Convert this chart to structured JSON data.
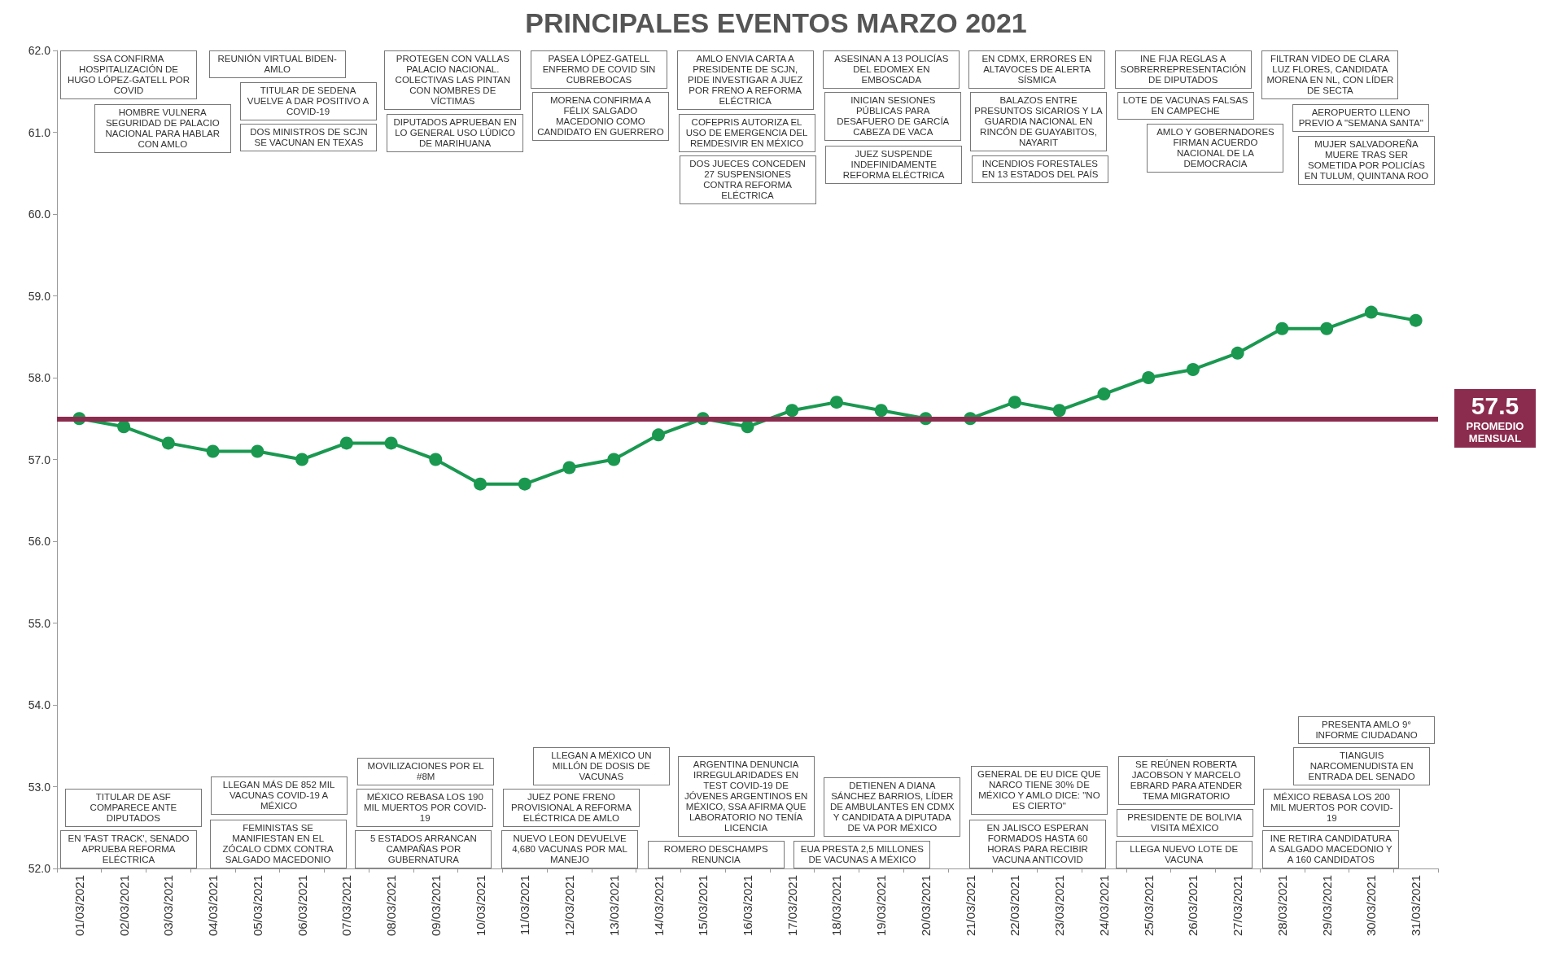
{
  "chart_data": {
    "type": "line",
    "title": "PRINCIPALES EVENTOS MARZO 2021",
    "categories": [
      "01/03/2021",
      "02/03/2021",
      "03/03/2021",
      "04/03/2021",
      "05/03/2021",
      "06/03/2021",
      "07/03/2021",
      "08/03/2021",
      "09/03/2021",
      "10/03/2021",
      "11/03/2021",
      "12/03/2021",
      "13/03/2021",
      "14/03/2021",
      "15/03/2021",
      "16/03/2021",
      "17/03/2021",
      "18/03/2021",
      "19/03/2021",
      "20/03/2021",
      "21/03/2021",
      "22/03/2021",
      "23/03/2021",
      "24/03/2021",
      "25/03/2021",
      "26/03/2021",
      "27/03/2021",
      "28/03/2021",
      "29/03/2021",
      "30/03/2021",
      "31/03/2021"
    ],
    "series": [
      {
        "color": "#1a9850",
        "values": [
          57.5,
          57.4,
          57.2,
          57.1,
          57.1,
          57.0,
          57.2,
          57.2,
          57.0,
          56.7,
          56.7,
          56.9,
          57.0,
          57.3,
          57.5,
          57.4,
          57.6,
          57.7,
          57.6,
          57.5,
          57.5,
          57.7,
          57.6,
          57.8,
          58.0,
          58.1,
          58.3,
          58.6,
          58.6,
          58.8,
          58.7
        ]
      }
    ],
    "ylim": [
      52,
      62
    ],
    "yticks": [
      {
        "value": 52,
        "label": "52.0"
      },
      {
        "value": 53,
        "label": "53.0"
      },
      {
        "value": 54,
        "label": "54.0"
      },
      {
        "value": 55,
        "label": "55.0"
      },
      {
        "value": 56,
        "label": "56.0"
      },
      {
        "value": 57,
        "label": "57.0"
      },
      {
        "value": 58,
        "label": "58.0"
      },
      {
        "value": 59,
        "label": "59.0"
      },
      {
        "value": 60,
        "label": "60.0"
      },
      {
        "value": 61,
        "label": "61.0"
      },
      {
        "value": 62,
        "label": "62.0"
      }
    ],
    "grid": false,
    "marker": "circle",
    "line_style": "solid",
    "ref_lines": [
      {
        "axis": "y",
        "value": 57.5,
        "label": "57.5 PROMEDIO MENSUAL",
        "color": "#8b2c4e"
      }
    ],
    "annotations": [
      "SSA CONFIRMA HOSPITALIZACIÓN DE HUGO LÓPEZ-GATELL POR COVID",
      "EN 'FAST TRACK', SENADO APRUEBA REFORMA ELÉCTRICA",
      "TITULAR DE ASF COMPARECE ANTE DIPUTADOS",
      "HOMBRE VULNERA SEGURIDAD DE PALACIO NACIONAL PARA HABLAR CON AMLO",
      "REUNIÓN VIRTUAL BIDEN-AMLO",
      "FEMINISTAS SE MANIFIESTAN EN EL ZÓCALO CDMX CONTRA SALGADO MACEDONIO",
      "LLEGAN MÁS DE 852 MIL VACUNAS COVID-19 A MÉXICO",
      "TITULAR DE SEDENA VUELVE A DAR POSITIVO A COVID-19",
      "DOS MINISTROS DE SCJN SE VACUNAN EN TEXAS",
      "5 ESTADOS ARRANCAN CAMPAÑAS POR GUBERNATURA",
      "PROTEGEN CON VALLAS PALACIO NACIONAL. COLECTIVAS LAS PINTAN CON NOMBRES DE VÍCTIMAS",
      "MÉXICO REBASA LOS 190 MIL MUERTOS POR COVID-19",
      "MOVILIZACIONES POR EL #8M",
      "DIPUTADOS APRUEBAN EN LO GENERAL USO LÚDICO DE MARIHUANA",
      "NUEVO LEON DEVUELVE 4,680 VACUNAS POR MAL MANEJO",
      "PASEA LÓPEZ-GATELL ENFERMO DE COVID SIN CUBREBOCAS",
      "JUEZ PONE FRENO PROVISIONAL A REFORMA ELÉCTRICA DE AMLO",
      "MORENA CONFIRMA A FÉLIX SALGADO MACEDONIO COMO CANDIDATO EN GUERRERO",
      "LLEGAN A MÉXICO UN MILLÓN DE DOSIS DE VACUNAS",
      "ROMERO DESCHAMPS RENUNCIA",
      "AMLO ENVIA CARTA A PRESIDENTE DE SCJN, PIDE INVESTIGAR A JUEZ POR FRENO A REFORMA ELÉCTRICA",
      "ARGENTINA DENUNCIA IRREGULARIDADES EN TEST COVID-19 DE JÓVENES ARGENTINOS EN MÉXICO, SSA AFIRMA QUE LABORATORIO NO TENÍA LICENCIA",
      "COFEPRIS AUTORIZA EL USO DE EMERGENCIA DEL REMDESIVIR EN MÉXICO",
      "DOS JUECES CONCEDEN 27 SUSPENSIONES CONTRA REFORMA ELÉCTRICA",
      "EUA PRESTA 2,5 MILLONES DE VACUNAS A MÉXICO",
      "ASESINAN A 13 POLICÍAS DEL EDOMEX EN EMBOSCADA",
      "DETIENEN A DIANA SÁNCHEZ BARRIOS, LÍDER DE AMBULANTES EN CDMX Y CANDIDATA A DIPUTADA DE VA POR MÉXICO",
      "INICIAN SESIONES PÚBLICAS PARA DESAFUERO DE GARCÍA CABEZA DE VACA",
      "JUEZ SUSPENDE INDEFINIDAMENTE REFORMA ELÉCTRICA",
      "EN CDMX, ERRORES EN ALTAVOCES DE ALERTA SÍSMICA",
      "EN JALISCO ESPERAN FORMADOS HASTA 60 HORAS PARA RECIBIR VACUNA ANTICOVID",
      "BALAZOS ENTRE PRESUNTOS SICARIOS Y LA GUARDIA NACIONAL EN RINCÓN DE GUAYABITOS, NAYARIT",
      "GENERAL DE EU DICE QUE NARCO TIENE 30% DE MÉXICO Y AMLO DICE: \"NO ES CIERTO\"",
      "INCENDIOS FORESTALES EN 13 ESTADOS DEL PAÍS",
      "INE FIJA REGLAS A SOBRERREPRESENTACIÓN DE DIPUTADOS",
      "LLEGA NUEVO LOTE DE VACUNA",
      "PRESIDENTE DE BOLIVIA VISITA MÉXICO",
      "LOTE DE VACUNAS FALSAS EN CAMPECHE",
      "SE REÚNEN ROBERTA JACOBSON Y MARCELO EBRARD PARA ATENDER TEMA MIGRATORIO",
      "AMLO Y GOBERNADORES FIRMAN ACUERDO NACIONAL DE LA DEMOCRACIA",
      "FILTRAN VIDEO DE CLARA LUZ FLORES, CANDIDATA MORENA EN NL, CON LÍDER DE SECTA",
      "INE RETIRA CANDIDATURA A SALGADO MACEDONIO Y A 160 CANDIDATOS",
      "MÉXICO REBASA LOS 200 MIL MUERTOS POR COVID-19",
      "AEROPUERTO LLENO PREVIO A \"SEMANA SANTA\"",
      "TIANGUIS NARCOMENUDISTA EN ENTRADA DEL SENADO",
      "MUJER SALVADOREÑA MUERE TRAS SER SOMETIDA POR POLICÍAS EN TULUM, QUINTANA ROO",
      "PRESENTA AMLO 9° INFORME CIUDADANO"
    ]
  }
}
